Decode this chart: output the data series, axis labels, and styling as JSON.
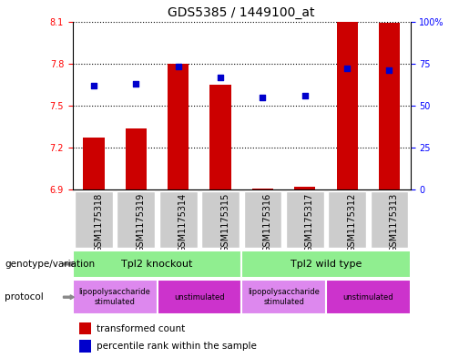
{
  "title": "GDS5385 / 1449100_at",
  "samples": [
    "GSM1175318",
    "GSM1175319",
    "GSM1175314",
    "GSM1175315",
    "GSM1175316",
    "GSM1175317",
    "GSM1175312",
    "GSM1175313"
  ],
  "transformed_counts": [
    7.27,
    7.34,
    7.8,
    7.65,
    6.91,
    6.92,
    8.1,
    8.09
  ],
  "percentile_ranks": [
    62,
    63,
    73,
    67,
    55,
    56,
    72,
    71
  ],
  "bar_bottom": 6.9,
  "ylim_left": [
    6.9,
    8.1
  ],
  "ylim_right": [
    0,
    100
  ],
  "yticks_left": [
    6.9,
    7.2,
    7.5,
    7.8,
    8.1
  ],
  "yticks_right": [
    0,
    25,
    50,
    75,
    100
  ],
  "bar_color": "#cc0000",
  "dot_color": "#0000cc",
  "plot_bg_color": "#ffffff",
  "geno_color": "#90ee90",
  "proto_lps_color": "#dd88ee",
  "proto_unstim_color": "#cc33cc",
  "sample_bg_color": "#cccccc",
  "genotype_groups": [
    {
      "label": "Tpl2 knockout",
      "start": 0,
      "end": 4
    },
    {
      "label": "Tpl2 wild type",
      "start": 4,
      "end": 8
    }
  ],
  "protocol_groups": [
    {
      "label": "lipopolysaccharide\nstimulated",
      "start": 0,
      "end": 2,
      "color_key": "lps"
    },
    {
      "label": "unstimulated",
      "start": 2,
      "end": 4,
      "color_key": "unstim"
    },
    {
      "label": "lipopolysaccharide\nstimulated",
      "start": 4,
      "end": 6,
      "color_key": "lps"
    },
    {
      "label": "unstimulated",
      "start": 6,
      "end": 8,
      "color_key": "unstim"
    }
  ],
  "label_fontsize": 8,
  "tick_fontsize": 7,
  "title_fontsize": 10,
  "annot_fontsize": 7.5
}
